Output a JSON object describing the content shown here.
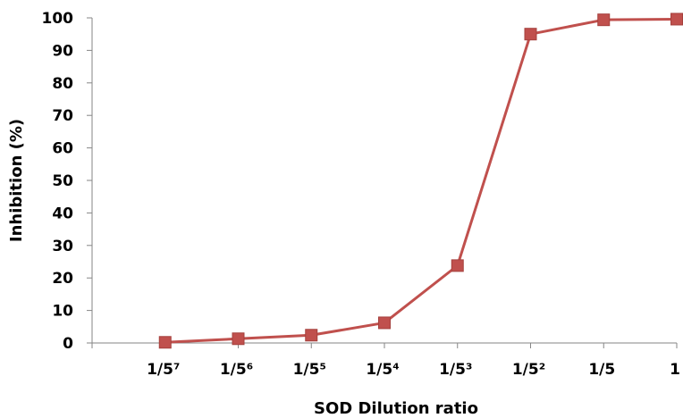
{
  "chart_data": {
    "type": "line",
    "categories": [
      "",
      "1/5⁷",
      "1/5⁶",
      "1/5⁵",
      "1/5⁴",
      "1/5³",
      "1/5²",
      "1/5",
      "1"
    ],
    "series": [
      {
        "values": [
          null,
          0.2,
          1.3,
          2.4,
          6.2,
          23.8,
          95.0,
          99.4,
          99.6
        ]
      }
    ],
    "title": "",
    "xlabel": "SOD  Dilution ratio",
    "ylabel": "Inhibition (%)",
    "ylim": [
      0,
      100
    ],
    "yticks": [
      "0",
      "10",
      "20",
      "30",
      "40",
      "50",
      "60",
      "70",
      "80",
      "90",
      "100"
    ],
    "grid": false,
    "legend": "none",
    "series_color": "#C0504D",
    "axis_color": "#868686"
  }
}
